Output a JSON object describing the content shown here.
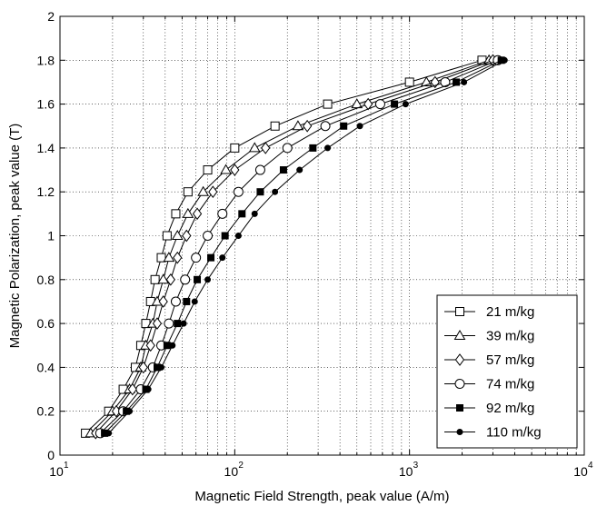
{
  "chart_data": {
    "type": "line",
    "title": "",
    "xlabel": "Magnetic Field Strength, peak value (A/m)",
    "ylabel": "Magnetic Polarization, peak value (T)",
    "xscale": "log",
    "xlim": [
      10,
      10000
    ],
    "ylim": [
      0,
      2
    ],
    "grid": true,
    "legend_position": "bottom-right",
    "x_ticks": [
      {
        "value": 10,
        "base": "10",
        "exp": "1"
      },
      {
        "value": 100,
        "base": "10",
        "exp": "2"
      },
      {
        "value": 1000,
        "base": "10",
        "exp": "3"
      },
      {
        "value": 10000,
        "base": "10",
        "exp": "4"
      }
    ],
    "y_ticks": [
      {
        "value": 0,
        "label": "0"
      },
      {
        "value": 0.2,
        "label": "0.2"
      },
      {
        "value": 0.4,
        "label": "0.4"
      },
      {
        "value": 0.6,
        "label": "0.6"
      },
      {
        "value": 0.8,
        "label": "0.8"
      },
      {
        "value": 1.0,
        "label": "1"
      },
      {
        "value": 1.2,
        "label": "1.2"
      },
      {
        "value": 1.4,
        "label": "1.4"
      },
      {
        "value": 1.6,
        "label": "1.6"
      },
      {
        "value": 1.8,
        "label": "1.8"
      },
      {
        "value": 2.0,
        "label": "2"
      }
    ],
    "series": [
      {
        "name": "21 m/kg",
        "marker": "square-open",
        "color": "#000000",
        "x": [
          14,
          19,
          23,
          27,
          29,
          31,
          33,
          35,
          38,
          41,
          46,
          54,
          70,
          100,
          170,
          340,
          1000,
          2600,
          5300,
          10000
        ],
        "y": [
          0.1,
          0.2,
          0.3,
          0.4,
          0.5,
          0.6,
          0.7,
          0.8,
          0.9,
          1.0,
          1.1,
          1.2,
          1.3,
          1.4,
          1.5,
          1.6,
          1.7,
          1.8,
          1.9,
          2.0
        ]
      },
      {
        "name": "39 m/kg",
        "marker": "triangle-open",
        "color": "#000000",
        "x": [
          15,
          20,
          25,
          29,
          31,
          34,
          36,
          39,
          42,
          47,
          54,
          66,
          89,
          130,
          230,
          500,
          1250,
          2850,
          5600,
          10000
        ],
        "y": [
          0.1,
          0.2,
          0.3,
          0.4,
          0.5,
          0.6,
          0.7,
          0.8,
          0.9,
          1.0,
          1.1,
          1.2,
          1.3,
          1.4,
          1.5,
          1.6,
          1.7,
          1.8,
          1.9,
          2.0
        ]
      },
      {
        "name": "57 m/kg",
        "marker": "diamond-open",
        "color": "#000000",
        "x": [
          16,
          21,
          26,
          30,
          33,
          36,
          39,
          43,
          47,
          53,
          61,
          75,
          100,
          150,
          260,
          580,
          1400,
          3000,
          5700,
          10000
        ],
        "y": [
          0.1,
          0.2,
          0.3,
          0.4,
          0.5,
          0.6,
          0.7,
          0.8,
          0.9,
          1.0,
          1.1,
          1.2,
          1.3,
          1.4,
          1.5,
          1.6,
          1.7,
          1.8,
          1.9,
          2.0
        ]
      },
      {
        "name": "74 m/kg",
        "marker": "circle-open",
        "color": "#000000",
        "x": [
          17,
          23,
          29,
          34,
          38,
          42,
          46,
          52,
          60,
          70,
          85,
          105,
          140,
          200,
          330,
          680,
          1600,
          3200,
          5800,
          10000
        ],
        "y": [
          0.1,
          0.2,
          0.3,
          0.4,
          0.5,
          0.6,
          0.7,
          0.8,
          0.9,
          1.0,
          1.1,
          1.2,
          1.3,
          1.4,
          1.5,
          1.6,
          1.7,
          1.8,
          1.9,
          2.0
        ]
      },
      {
        "name": "92 m/kg",
        "marker": "square-filled",
        "color": "#000000",
        "x": [
          18,
          24,
          31,
          36,
          41,
          47,
          53,
          61,
          73,
          88,
          110,
          140,
          190,
          280,
          420,
          820,
          1850,
          3350,
          5900,
          10000
        ],
        "y": [
          0.1,
          0.2,
          0.3,
          0.4,
          0.5,
          0.6,
          0.7,
          0.8,
          0.9,
          1.0,
          1.1,
          1.2,
          1.3,
          1.4,
          1.5,
          1.6,
          1.7,
          1.8,
          1.9,
          2.0
        ]
      },
      {
        "name": "110 m/kg",
        "marker": "circle-filled",
        "color": "#000000",
        "x": [
          19,
          25,
          32,
          38,
          44,
          51,
          59,
          70,
          85,
          105,
          130,
          170,
          235,
          340,
          520,
          950,
          2050,
          3500,
          6000,
          10000
        ],
        "y": [
          0.1,
          0.2,
          0.3,
          0.4,
          0.5,
          0.6,
          0.7,
          0.8,
          0.9,
          1.0,
          1.1,
          1.2,
          1.3,
          1.4,
          1.5,
          1.6,
          1.7,
          1.8,
          1.9,
          2.0
        ]
      }
    ]
  }
}
